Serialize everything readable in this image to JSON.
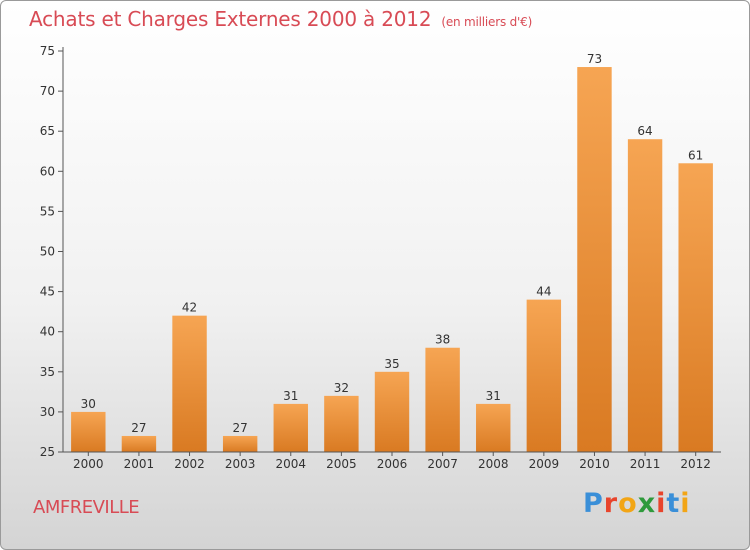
{
  "title": "Achats et Charges Externes 2000 à 2012",
  "unit": "(en milliers d'€)",
  "commune": "AMFREVILLE",
  "logo": {
    "text": "Proxiti",
    "letters": [
      "P",
      "r",
      "o",
      "x",
      "i",
      "t",
      "i"
    ],
    "colors": [
      "#3a8fd8",
      "#e8442c",
      "#f2a516",
      "#2f9a3c",
      "#e8442c",
      "#3a8fd8",
      "#f2a516"
    ]
  },
  "colors": {
    "bar_top": "#f6a553",
    "bar_bottom": "#d97a22",
    "title": "#d84b55"
  },
  "chart_data": {
    "type": "bar",
    "categories": [
      "2000",
      "2001",
      "2002",
      "2003",
      "2004",
      "2005",
      "2006",
      "2007",
      "2008",
      "2009",
      "2010",
      "2011",
      "2012"
    ],
    "values": [
      30,
      27,
      42,
      27,
      31,
      32,
      35,
      38,
      31,
      44,
      73,
      64,
      61
    ],
    "ylim": [
      25,
      75
    ],
    "yticks": [
      25,
      30,
      35,
      40,
      45,
      50,
      55,
      60,
      65,
      70,
      75
    ],
    "grid": false,
    "data_labels": true
  }
}
